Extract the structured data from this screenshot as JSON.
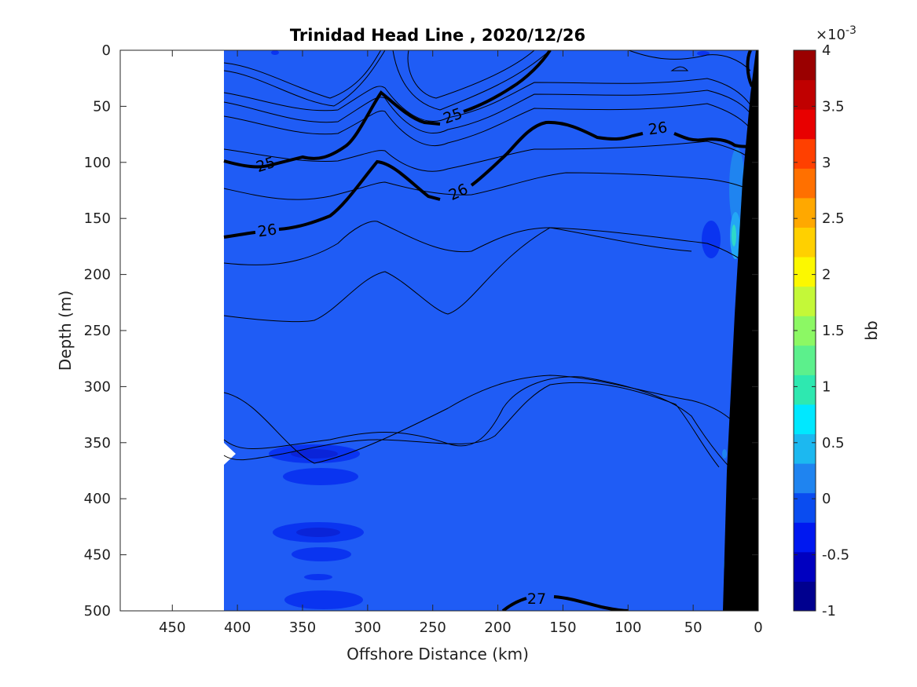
{
  "chart_data": {
    "type": "heatmap",
    "title": "Trinidad Head Line , 2020/12/26",
    "xlabel": "Offshore Distance (km)",
    "ylabel": "Depth (m)",
    "x_ticks": [
      450,
      400,
      350,
      300,
      250,
      200,
      150,
      100,
      50,
      0
    ],
    "y_ticks": [
      0,
      50,
      100,
      150,
      200,
      250,
      300,
      350,
      400,
      450,
      500
    ],
    "xlim": [
      490,
      0
    ],
    "ylim": [
      0,
      500
    ],
    "x_reversed": true,
    "y_reversed": true,
    "grid": false,
    "colorbar": {
      "label": "bb",
      "exponent_label": "×10",
      "exponent": "-3",
      "range": [
        -1,
        4
      ],
      "ticks": [
        "4",
        "3.5",
        "3",
        "2.5",
        "2",
        "1.5",
        "1",
        "0.5",
        "0",
        "-0.5",
        "-1"
      ],
      "colors": [
        "#00008f",
        "#0000c0",
        "#0018f0",
        "#0a4cf0",
        "#1f84f0",
        "#1cb8f0",
        "#00e8ff",
        "#2ee8b0",
        "#5cf08c",
        "#8cf864",
        "#c4f838",
        "#fcf800",
        "#ffd000",
        "#ffa800",
        "#ff7000",
        "#ff4000",
        "#e80000",
        "#c00000",
        "#9a0000"
      ]
    },
    "background_value": 0.05,
    "data_start_distance_km": 410,
    "contours": [
      {
        "level": "25",
        "labels": [
          {
            "x": 388,
            "depth": 103
          },
          {
            "x": 240,
            "depth": 55
          }
        ]
      },
      {
        "level": "26",
        "labels": [
          {
            "x": 385,
            "depth": 160
          },
          {
            "x": 235,
            "depth": 123
          },
          {
            "x": 85,
            "depth": 70
          }
        ]
      },
      {
        "level": "27",
        "labels": [
          {
            "x": 168,
            "depth": 488
          }
        ]
      }
    ],
    "colors": {
      "field": "#1f5cf5",
      "low_patch": "#0a34f0",
      "lower_patch": "#0a24d8",
      "bottom": "#000000",
      "high_patch": "#23a7f5"
    }
  }
}
